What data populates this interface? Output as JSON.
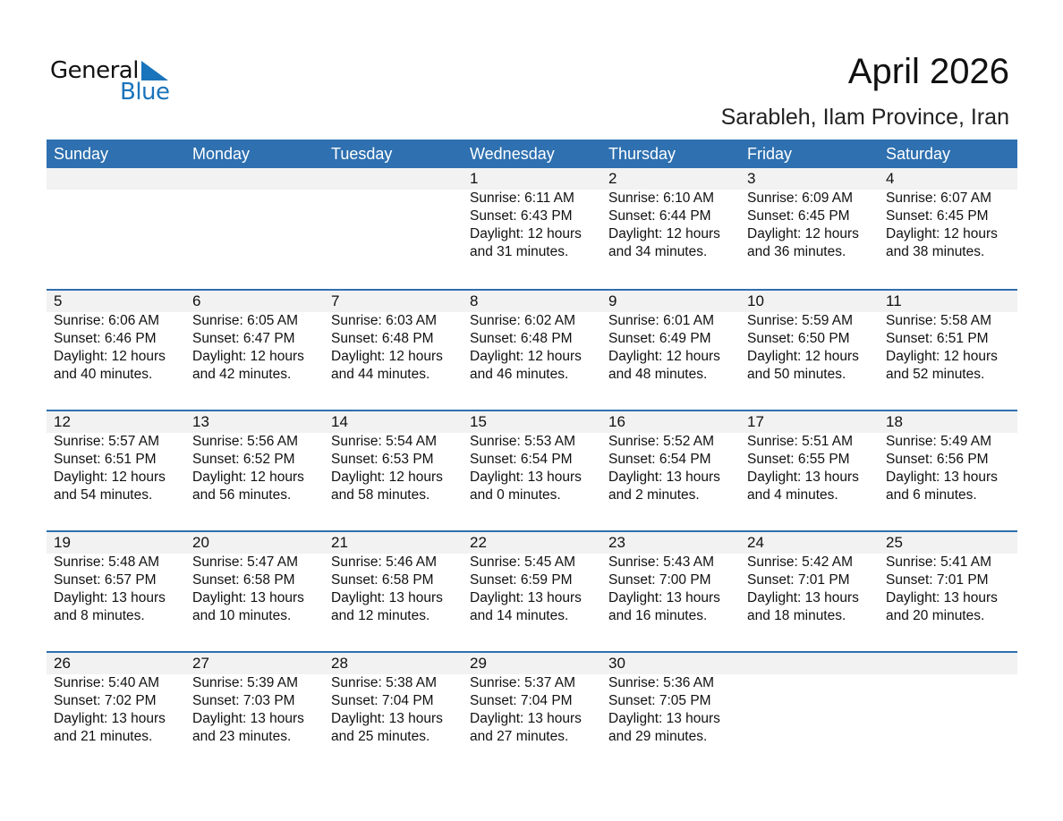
{
  "logo": {
    "word1": "General",
    "word2": "Blue",
    "color": "#1a74bb"
  },
  "title": "April 2026",
  "subtitle": "Sarableh, Ilam Province, Iran",
  "colors": {
    "header": "#2e70b0",
    "strip": "#f2f2f2"
  },
  "weekdays": [
    "Sunday",
    "Monday",
    "Tuesday",
    "Wednesday",
    "Thursday",
    "Friday",
    "Saturday"
  ],
  "weeks": [
    [
      null,
      null,
      null,
      {
        "day": "1",
        "lines": [
          "Sunrise: 6:11 AM",
          "Sunset: 6:43 PM",
          "Daylight: 12 hours",
          "and 31 minutes."
        ]
      },
      {
        "day": "2",
        "lines": [
          "Sunrise: 6:10 AM",
          "Sunset: 6:44 PM",
          "Daylight: 12 hours",
          "and 34 minutes."
        ]
      },
      {
        "day": "3",
        "lines": [
          "Sunrise: 6:09 AM",
          "Sunset: 6:45 PM",
          "Daylight: 12 hours",
          "and 36 minutes."
        ]
      },
      {
        "day": "4",
        "lines": [
          "Sunrise: 6:07 AM",
          "Sunset: 6:45 PM",
          "Daylight: 12 hours",
          "and 38 minutes."
        ]
      }
    ],
    [
      {
        "day": "5",
        "lines": [
          "Sunrise: 6:06 AM",
          "Sunset: 6:46 PM",
          "Daylight: 12 hours",
          "and 40 minutes."
        ]
      },
      {
        "day": "6",
        "lines": [
          "Sunrise: 6:05 AM",
          "Sunset: 6:47 PM",
          "Daylight: 12 hours",
          "and 42 minutes."
        ]
      },
      {
        "day": "7",
        "lines": [
          "Sunrise: 6:03 AM",
          "Sunset: 6:48 PM",
          "Daylight: 12 hours",
          "and 44 minutes."
        ]
      },
      {
        "day": "8",
        "lines": [
          "Sunrise: 6:02 AM",
          "Sunset: 6:48 PM",
          "Daylight: 12 hours",
          "and 46 minutes."
        ]
      },
      {
        "day": "9",
        "lines": [
          "Sunrise: 6:01 AM",
          "Sunset: 6:49 PM",
          "Daylight: 12 hours",
          "and 48 minutes."
        ]
      },
      {
        "day": "10",
        "lines": [
          "Sunrise: 5:59 AM",
          "Sunset: 6:50 PM",
          "Daylight: 12 hours",
          "and 50 minutes."
        ]
      },
      {
        "day": "11",
        "lines": [
          "Sunrise: 5:58 AM",
          "Sunset: 6:51 PM",
          "Daylight: 12 hours",
          "and 52 minutes."
        ]
      }
    ],
    [
      {
        "day": "12",
        "lines": [
          "Sunrise: 5:57 AM",
          "Sunset: 6:51 PM",
          "Daylight: 12 hours",
          "and 54 minutes."
        ]
      },
      {
        "day": "13",
        "lines": [
          "Sunrise: 5:56 AM",
          "Sunset: 6:52 PM",
          "Daylight: 12 hours",
          "and 56 minutes."
        ]
      },
      {
        "day": "14",
        "lines": [
          "Sunrise: 5:54 AM",
          "Sunset: 6:53 PM",
          "Daylight: 12 hours",
          "and 58 minutes."
        ]
      },
      {
        "day": "15",
        "lines": [
          "Sunrise: 5:53 AM",
          "Sunset: 6:54 PM",
          "Daylight: 13 hours",
          "and 0 minutes."
        ]
      },
      {
        "day": "16",
        "lines": [
          "Sunrise: 5:52 AM",
          "Sunset: 6:54 PM",
          "Daylight: 13 hours",
          "and 2 minutes."
        ]
      },
      {
        "day": "17",
        "lines": [
          "Sunrise: 5:51 AM",
          "Sunset: 6:55 PM",
          "Daylight: 13 hours",
          "and 4 minutes."
        ]
      },
      {
        "day": "18",
        "lines": [
          "Sunrise: 5:49 AM",
          "Sunset: 6:56 PM",
          "Daylight: 13 hours",
          "and 6 minutes."
        ]
      }
    ],
    [
      {
        "day": "19",
        "lines": [
          "Sunrise: 5:48 AM",
          "Sunset: 6:57 PM",
          "Daylight: 13 hours",
          "and 8 minutes."
        ]
      },
      {
        "day": "20",
        "lines": [
          "Sunrise: 5:47 AM",
          "Sunset: 6:58 PM",
          "Daylight: 13 hours",
          "and 10 minutes."
        ]
      },
      {
        "day": "21",
        "lines": [
          "Sunrise: 5:46 AM",
          "Sunset: 6:58 PM",
          "Daylight: 13 hours",
          "and 12 minutes."
        ]
      },
      {
        "day": "22",
        "lines": [
          "Sunrise: 5:45 AM",
          "Sunset: 6:59 PM",
          "Daylight: 13 hours",
          "and 14 minutes."
        ]
      },
      {
        "day": "23",
        "lines": [
          "Sunrise: 5:43 AM",
          "Sunset: 7:00 PM",
          "Daylight: 13 hours",
          "and 16 minutes."
        ]
      },
      {
        "day": "24",
        "lines": [
          "Sunrise: 5:42 AM",
          "Sunset: 7:01 PM",
          "Daylight: 13 hours",
          "and 18 minutes."
        ]
      },
      {
        "day": "25",
        "lines": [
          "Sunrise: 5:41 AM",
          "Sunset: 7:01 PM",
          "Daylight: 13 hours",
          "and 20 minutes."
        ]
      }
    ],
    [
      {
        "day": "26",
        "lines": [
          "Sunrise: 5:40 AM",
          "Sunset: 7:02 PM",
          "Daylight: 13 hours",
          "and 21 minutes."
        ]
      },
      {
        "day": "27",
        "lines": [
          "Sunrise: 5:39 AM",
          "Sunset: 7:03 PM",
          "Daylight: 13 hours",
          "and 23 minutes."
        ]
      },
      {
        "day": "28",
        "lines": [
          "Sunrise: 5:38 AM",
          "Sunset: 7:04 PM",
          "Daylight: 13 hours",
          "and 25 minutes."
        ]
      },
      {
        "day": "29",
        "lines": [
          "Sunrise: 5:37 AM",
          "Sunset: 7:04 PM",
          "Daylight: 13 hours",
          "and 27 minutes."
        ]
      },
      {
        "day": "30",
        "lines": [
          "Sunrise: 5:36 AM",
          "Sunset: 7:05 PM",
          "Daylight: 13 hours",
          "and 29 minutes."
        ]
      },
      null,
      null
    ]
  ]
}
